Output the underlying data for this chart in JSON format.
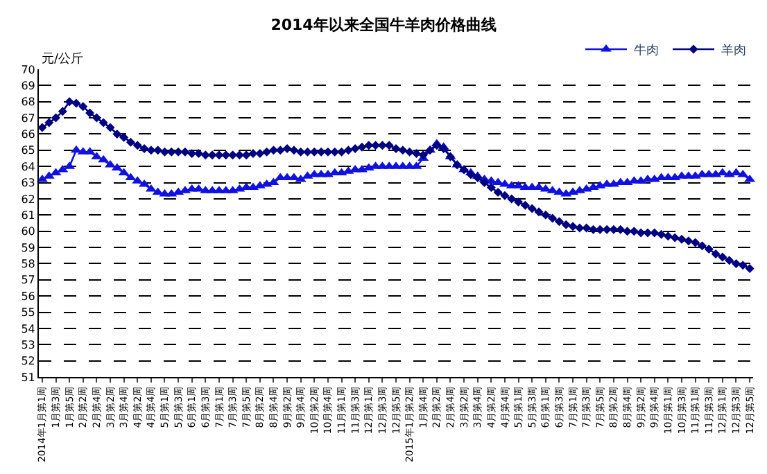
{
  "chart_data": {
    "type": "line",
    "title": "2014年以来全国牛羊肉价格曲线",
    "ylabel": "元/公斤",
    "categories": [
      "2014年1月第1周",
      null,
      "1月第3周",
      null,
      "1月第5周",
      null,
      "2月第2周",
      null,
      "2月第4周",
      null,
      "3月第2周",
      null,
      "3月第4周",
      null,
      "4月第2周",
      null,
      "4月第4周",
      null,
      "5月第1周",
      null,
      "5月第3周",
      null,
      "6月第1周",
      null,
      "6月第3周",
      null,
      "7月第1周",
      null,
      "7月第3周",
      null,
      "7月第5周",
      null,
      "8月第2周",
      null,
      "8月第4周",
      null,
      "9月第2周",
      null,
      "9月第4周",
      null,
      "10月第2周",
      null,
      "10月第4周",
      null,
      "11月第1周",
      null,
      "11月第3周",
      null,
      "12月第1周",
      null,
      "12月第3周",
      null,
      "12月第5周",
      null,
      "2015年1月第2周",
      null,
      "1月第4周",
      null,
      "2月第2周",
      null,
      "2月第4周",
      null,
      "3月第2周",
      null,
      "3月第4周",
      null,
      "4月第2周",
      null,
      "4月第4周",
      null,
      "5月第1周",
      null,
      "5月第3周",
      null,
      "6月第1周",
      null,
      "6月第3周",
      null,
      "7月第1周",
      null,
      "7月第3周",
      null,
      "7月第5周",
      null,
      "8月第2周",
      null,
      "8月第4周",
      null,
      "9月第2周",
      null,
      "9月第4周",
      null,
      "10月第1周",
      null,
      "10月第3周",
      null,
      "11月第1周",
      null,
      "11月第3周",
      null,
      "12月第1周",
      null,
      "12月第3周",
      null,
      "12月第5周"
    ],
    "series": [
      {
        "name": "牛肉",
        "color": "#1010e0",
        "marker": "triangle",
        "values": [
          63.2,
          63.4,
          63.6,
          63.8,
          64.0,
          65.0,
          64.9,
          64.9,
          64.6,
          64.4,
          64.1,
          63.9,
          63.6,
          63.3,
          63.1,
          62.9,
          62.6,
          62.4,
          62.3,
          62.3,
          62.4,
          62.5,
          62.6,
          62.6,
          62.5,
          62.5,
          62.5,
          62.5,
          62.5,
          62.6,
          62.7,
          62.7,
          62.8,
          62.9,
          63.0,
          63.3,
          63.3,
          63.3,
          63.2,
          63.4,
          63.5,
          63.5,
          63.5,
          63.6,
          63.6,
          63.7,
          63.8,
          63.8,
          63.9,
          64.0,
          64.0,
          64.0,
          64.0,
          64.0,
          64.0,
          64.0,
          64.5,
          65.0,
          65.4,
          65.2,
          64.6,
          64.1,
          63.8,
          63.6,
          63.4,
          63.2,
          63.1,
          63.0,
          62.9,
          62.8,
          62.8,
          62.7,
          62.7,
          62.7,
          62.6,
          62.5,
          62.4,
          62.3,
          62.4,
          62.5,
          62.6,
          62.7,
          62.8,
          62.9,
          62.9,
          63.0,
          63.0,
          63.1,
          63.1,
          63.2,
          63.2,
          63.3,
          63.3,
          63.3,
          63.4,
          63.4,
          63.4,
          63.5,
          63.5,
          63.5,
          63.6,
          63.5,
          63.6,
          63.5,
          63.2
        ]
      },
      {
        "name": "羊肉",
        "color": "#000080",
        "marker": "diamond",
        "values": [
          66.4,
          66.7,
          67.0,
          67.4,
          68.0,
          67.9,
          67.7,
          67.3,
          67.0,
          66.7,
          66.4,
          66.0,
          65.8,
          65.5,
          65.3,
          65.1,
          65.0,
          65.0,
          64.9,
          64.9,
          64.9,
          64.9,
          64.8,
          64.8,
          64.7,
          64.7,
          64.7,
          64.7,
          64.7,
          64.7,
          64.7,
          64.8,
          64.8,
          64.9,
          65.0,
          65.0,
          65.1,
          65.0,
          64.9,
          64.9,
          64.9,
          64.9,
          64.9,
          64.9,
          64.9,
          65.0,
          65.1,
          65.2,
          65.3,
          65.3,
          65.3,
          65.3,
          65.1,
          65.0,
          64.9,
          64.8,
          64.7,
          65.0,
          65.3,
          65.1,
          64.6,
          64.1,
          63.8,
          63.5,
          63.3,
          63.0,
          62.7,
          62.4,
          62.2,
          62.0,
          61.8,
          61.6,
          61.4,
          61.2,
          61.0,
          60.8,
          60.6,
          60.4,
          60.3,
          60.2,
          60.2,
          60.1,
          60.1,
          60.1,
          60.1,
          60.1,
          60.0,
          60.0,
          59.9,
          59.9,
          59.9,
          59.8,
          59.7,
          59.6,
          59.5,
          59.4,
          59.3,
          59.1,
          58.9,
          58.6,
          58.4,
          58.2,
          58.0,
          57.9,
          57.7
        ]
      }
    ],
    "ylim": [
      51,
      70
    ],
    "yticks": [
      51,
      52,
      53,
      54,
      55,
      56,
      57,
      58,
      59,
      60,
      61,
      62,
      63,
      64,
      65,
      66,
      67,
      68,
      69,
      70
    ],
    "grid": "y",
    "legend": "top right"
  }
}
